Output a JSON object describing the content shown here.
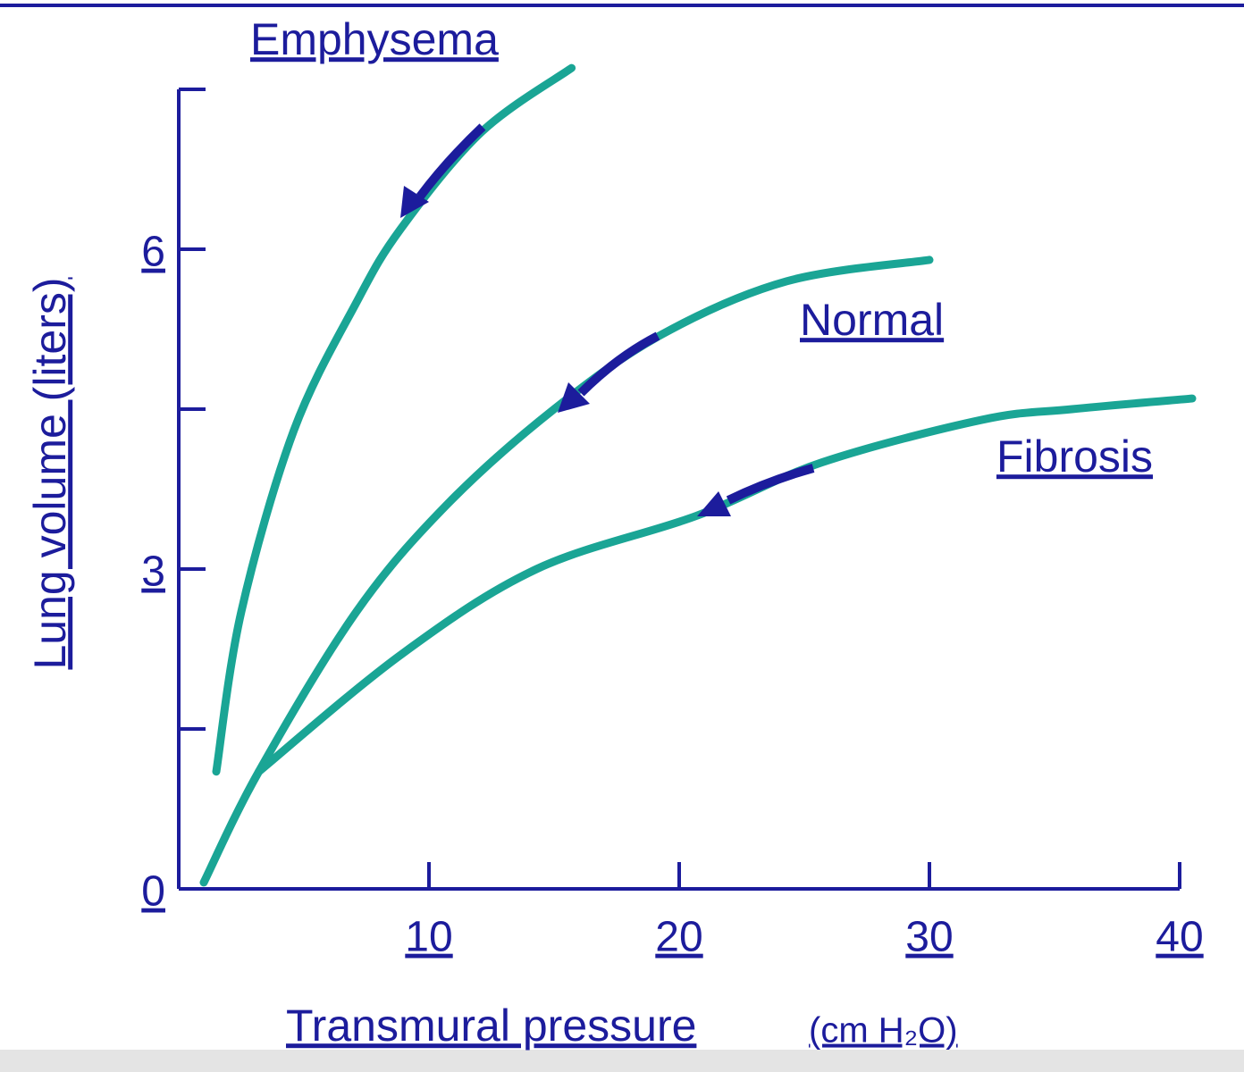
{
  "chart_data": {
    "type": "line",
    "xlabel": "Transmural pressure",
    "xunit": "(cm H₂O)",
    "ylabel": "Lung volume (liters)",
    "xlim": [
      0,
      40
    ],
    "ylim": [
      0,
      7.5
    ],
    "xticks": [
      10,
      20,
      30,
      40
    ],
    "yticks": [
      0,
      3,
      6
    ],
    "yminor": [
      1.5,
      4.5,
      7.5
    ],
    "series": [
      {
        "name": "Emphysema",
        "color": "#1aa595",
        "x": [
          1.5,
          2.5,
          4.6,
          7.1,
          8.9,
          12.1,
          15.7
        ],
        "values": [
          1.1,
          2.6,
          4.3,
          5.5,
          6.2,
          7.1,
          7.7
        ]
      },
      {
        "name": "Normal",
        "color": "#1aa595",
        "x": [
          1.0,
          3.2,
          7.1,
          10.7,
          15,
          19.3,
          24.3,
          30
        ],
        "values": [
          0.06,
          1.1,
          2.6,
          3.6,
          4.5,
          5.2,
          5.7,
          5.9
        ]
      },
      {
        "name": "Fibrosis",
        "color": "#1aa595",
        "x": [
          3.2,
          8.9,
          14.3,
          20.7,
          25.7,
          32.1,
          35.7,
          40.5
        ],
        "values": [
          1.1,
          2.2,
          3.0,
          3.5,
          4.0,
          4.4,
          4.5,
          4.6
        ]
      }
    ]
  }
}
